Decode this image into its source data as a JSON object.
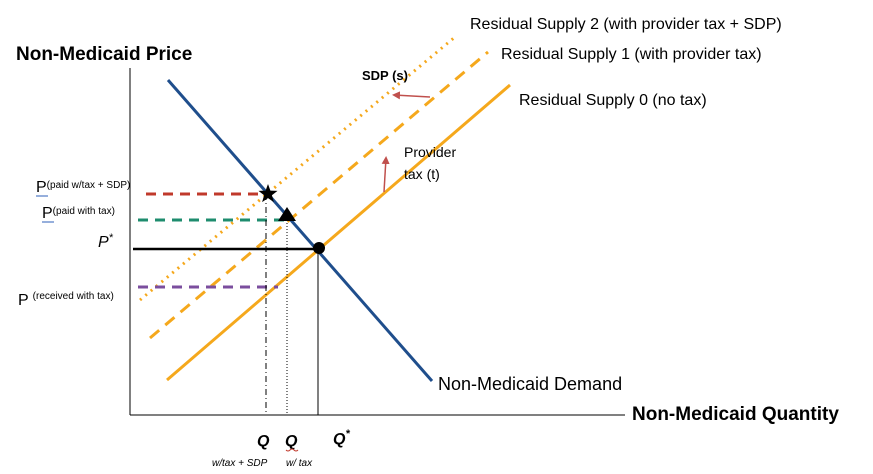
{
  "axes": {
    "y_label": "Non-Medicaid Price",
    "x_label": "Non-Medicaid Quantity"
  },
  "curves": {
    "supply_2": "Residual Supply 2 (with provider tax + SDP)",
    "supply_1": "Residual Supply 1 (with provider tax)",
    "supply_0": "Residual Supply 0 (no tax)",
    "demand": "Non-Medicaid Demand"
  },
  "shift_labels": {
    "sdp": "SDP (s)",
    "provider_line1": "Provider",
    "provider_line2": "tax (t)"
  },
  "price_labels": {
    "paid_tax_sdp_main": "P",
    "paid_tax_sdp_sub": "(paid w/tax + SDP)",
    "paid_tax_main": "P",
    "paid_tax_sub": "(paid with tax)",
    "p_star_main": "P",
    "p_star_sup": "*",
    "received_main": "P",
    "received_sub": "(received with tax)"
  },
  "quantity_labels": {
    "q1_main": "Q",
    "q1_sub": "w/tax + SDP",
    "q2_main": "Q",
    "q2_sub": "w/ tax",
    "q_star_main": "Q",
    "q_star_sup": "*"
  },
  "colors": {
    "demand": "#1F4E8C",
    "supply": "#F5A81C",
    "red_dash": "#C0392B",
    "green_dash": "#1E8C6E",
    "purple_dash": "#7B4E9E",
    "arrow": "#C0504D",
    "axis": "#000000"
  },
  "markers": {
    "tax_sdp_equilibrium": "star-icon",
    "tax_equilibrium": "triangle-icon",
    "original_equilibrium": "circle-icon"
  }
}
